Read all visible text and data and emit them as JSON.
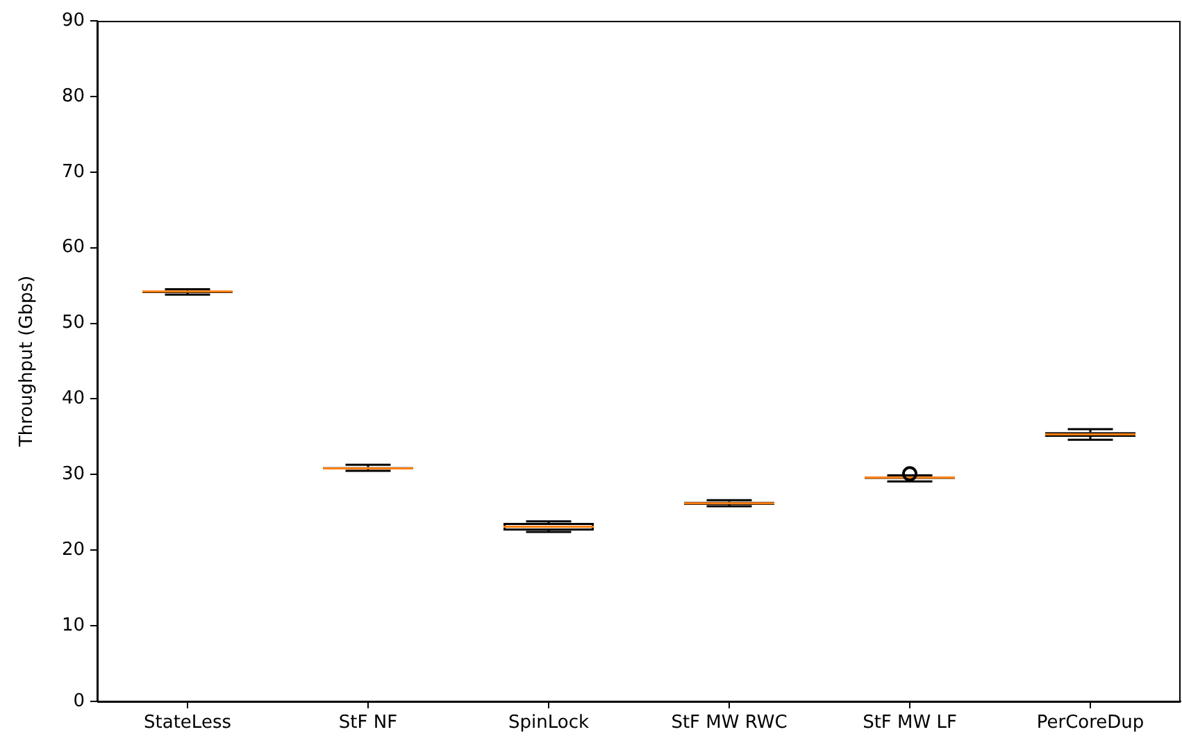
{
  "chart_data": {
    "type": "box",
    "ylabel": "Throughput (Gbps)",
    "categories": [
      "StateLess",
      "StF NF",
      "SpinLock",
      "StF MW RWC",
      "StF MW LF",
      "PerCoreDup"
    ],
    "boxes": [
      {
        "low": 53.8,
        "q1": 54.0,
        "median": 54.2,
        "q3": 54.3,
        "high": 54.5
      },
      {
        "low": 30.5,
        "q1": 30.7,
        "median": 30.8,
        "q3": 31.0,
        "high": 31.3
      },
      {
        "low": 22.4,
        "q1": 22.6,
        "median": 23.1,
        "q3": 23.6,
        "high": 23.8
      },
      {
        "low": 25.8,
        "q1": 26.0,
        "median": 26.2,
        "q3": 26.4,
        "high": 26.6
      },
      {
        "low": 29.1,
        "q1": 29.4,
        "median": 29.6,
        "q3": 29.7,
        "high": 29.9,
        "outliers": [
          30.1
        ]
      },
      {
        "low": 34.6,
        "q1": 35.0,
        "median": 35.3,
        "q3": 35.6,
        "high": 36.0
      }
    ],
    "ylim": [
      0,
      90
    ],
    "yticks": [
      0,
      10,
      20,
      30,
      40,
      50,
      60,
      70,
      80,
      90
    ]
  }
}
